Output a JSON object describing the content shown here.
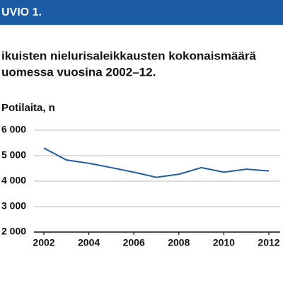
{
  "chart_data": {
    "type": "line",
    "figure_label": "UVIO 1.",
    "title": "ikuisten nielurisaleikkausten kokonaismäärä",
    "subtitle": "uomessa vuosina 2002–12.",
    "y_label": "Potilaita, n",
    "x": [
      2002,
      2003,
      2004,
      2005,
      2006,
      2007,
      2008,
      2009,
      2010,
      2011,
      2012
    ],
    "series": [
      {
        "color": "#1f5ca6",
        "values": [
          5300,
          4830,
          4700,
          4530,
          4350,
          4150,
          4270,
          4530,
          4350,
          4470,
          4400
        ]
      }
    ],
    "xlim": [
      2002,
      2012
    ],
    "xticks": [
      2002,
      2004,
      2006,
      2008,
      2010,
      2012
    ],
    "ylim": [
      2000,
      6000
    ],
    "yticks": [
      {
        "value": 2000,
        "label": "2 000"
      },
      {
        "value": 3000,
        "label": "3 000"
      },
      {
        "value": 4000,
        "label": "4 000"
      },
      {
        "value": 5000,
        "label": "5 000"
      },
      {
        "value": 6000,
        "label": "6 000"
      }
    ],
    "grid": true
  }
}
